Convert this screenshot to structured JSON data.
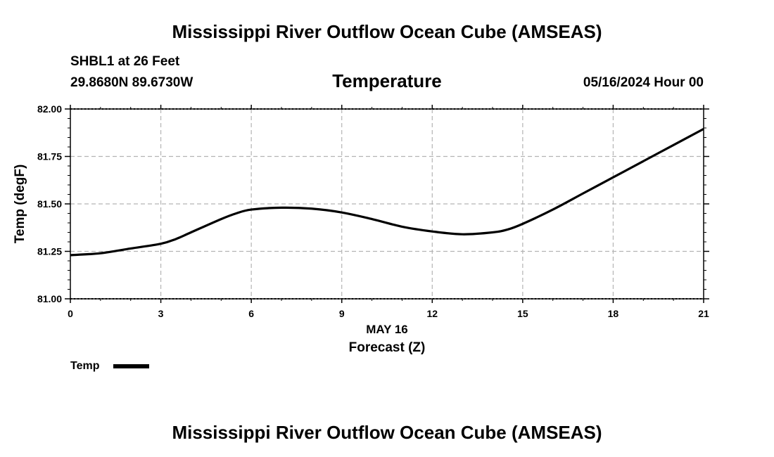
{
  "header": {
    "title": "Mississippi River Outflow Ocean Cube (AMSEAS)",
    "station": "SHBL1 at 26 Feet",
    "coords": "29.8680N  89.6730W",
    "datetime": "05/16/2024 Hour 00"
  },
  "footer": {
    "title": "Mississippi River Outflow Ocean Cube (AMSEAS)"
  },
  "chart_data": {
    "type": "line",
    "title": "Temperature",
    "xlabel": "Forecast (Z)",
    "xsublabel": "MAY 16",
    "ylabel": "Temp (degF)",
    "xlim": [
      0,
      21
    ],
    "ylim": [
      81.0,
      82.0
    ],
    "xticks": [
      "0",
      "3",
      "6",
      "9",
      "12",
      "15",
      "18",
      "21"
    ],
    "xtick_values": [
      0,
      3,
      6,
      9,
      12,
      15,
      18,
      21
    ],
    "yticks": [
      "81.00",
      "81.25",
      "81.50",
      "81.75",
      "82.00"
    ],
    "ytick_values": [
      81.0,
      81.25,
      81.5,
      81.75,
      82.0
    ],
    "grid": true,
    "legend_position": "bottom-left",
    "series": [
      {
        "name": "Temp",
        "color": "#000000",
        "x": [
          0,
          1,
          2,
          3,
          3.5,
          4,
          5,
          5.5,
          6,
          7,
          8,
          9,
          10,
          11,
          12,
          13,
          14,
          14.5,
          15,
          16,
          17,
          18,
          19,
          20,
          21
        ],
        "values": [
          81.23,
          81.24,
          81.265,
          81.29,
          81.315,
          81.35,
          81.42,
          81.45,
          81.47,
          81.48,
          81.475,
          81.455,
          81.42,
          81.38,
          81.355,
          81.34,
          81.35,
          81.365,
          81.395,
          81.47,
          81.555,
          81.64,
          81.725,
          81.81,
          81.895
        ]
      }
    ]
  }
}
